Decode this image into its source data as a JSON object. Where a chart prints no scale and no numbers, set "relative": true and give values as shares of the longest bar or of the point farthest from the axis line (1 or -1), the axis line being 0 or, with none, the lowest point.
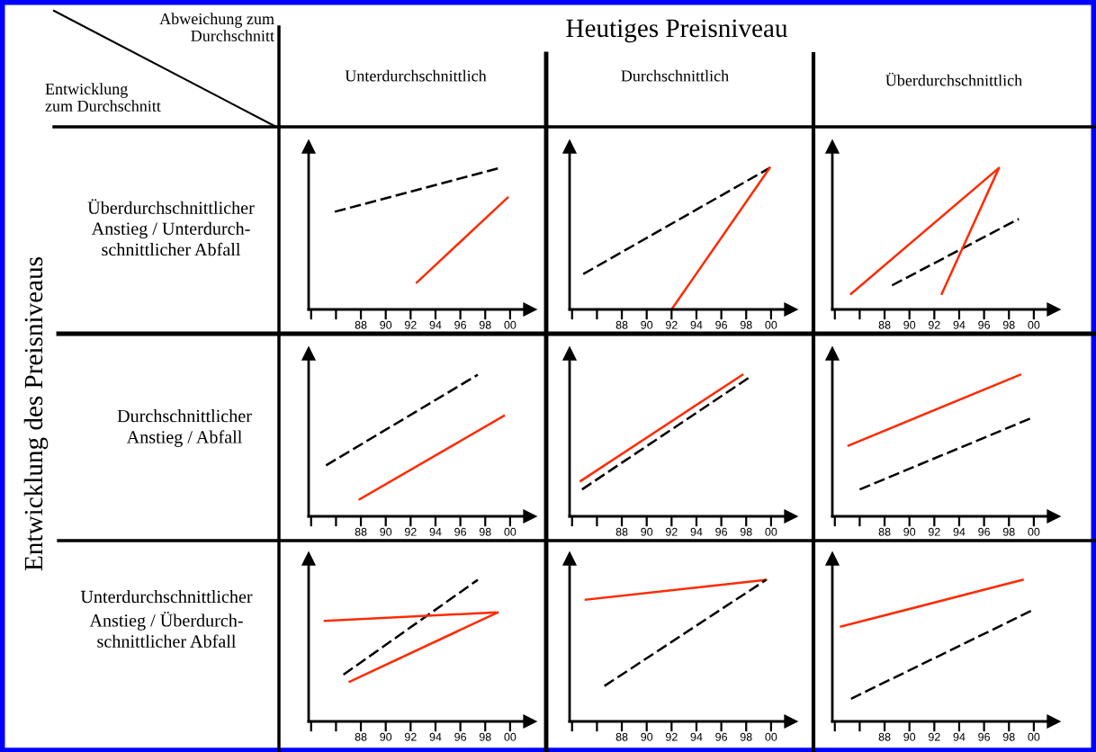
{
  "chart_data": [
    {
      "type": "other",
      "annotations": [
        "Abweichung zum\nDurchschnitt",
        "Entwicklung\nzum Durchschnitt",
        "Heutiges Preisniveau",
        "Unterdurchschnittlich",
        "Durchschnittlich",
        "Überdurchschnittlich",
        "Entwicklung des Preisniveaus",
        "Überdurchschnittlicher\nAnstieg / Unterdurch-\nschnittlicher Abfall",
        "Durchschnittlicher\nAnstieg / Abfall",
        "Unterdurchschnittlicher\nAnstieg / Überdurch-\nschnittlicher Abfall"
      ]
    },
    {
      "type": "line",
      "relative": true,
      "tick_labels": "x",
      "xlim": [
        1983.8,
        2001.6
      ],
      "xticks": [
        {
          "value": 1984,
          "label": null
        },
        {
          "value": 1986,
          "label": null
        },
        {
          "value": 1988,
          "label": "88"
        },
        {
          "value": 1990,
          "label": "90"
        },
        {
          "value": 1992,
          "label": "92"
        },
        {
          "value": 1994,
          "label": "94"
        },
        {
          "value": 1996,
          "label": "96"
        },
        {
          "value": 1998,
          "label": "98"
        },
        {
          "value": 2000,
          "label": "00"
        }
      ],
      "series": [
        {
          "color": "#000000",
          "line_style": "dashed",
          "x": [
            1985.9,
            1999.2
          ],
          "values": [
            0.69,
            1.0
          ]
        },
        {
          "color": "#ff2a00",
          "line_style": "solid",
          "x": [
            1992.5,
            1999.8
          ],
          "values": [
            0.19,
            0.79
          ]
        }
      ]
    },
    {
      "type": "line",
      "relative": true,
      "tick_labels": "x",
      "xlim": [
        1983.8,
        2001.6
      ],
      "xticks": [
        {
          "value": 1984,
          "label": null
        },
        {
          "value": 1986,
          "label": null
        },
        {
          "value": 1988,
          "label": "88"
        },
        {
          "value": 1990,
          "label": "90"
        },
        {
          "value": 1992,
          "label": "92"
        },
        {
          "value": 1994,
          "label": "94"
        },
        {
          "value": 1996,
          "label": "96"
        },
        {
          "value": 1998,
          "label": "98"
        },
        {
          "value": 2000,
          "label": "00"
        }
      ],
      "series": [
        {
          "color": "#000000",
          "line_style": "dashed",
          "x": [
            1984.9,
            1999.9
          ],
          "values": [
            0.25,
            1.0
          ]
        },
        {
          "color": "#ff2a00",
          "line_style": "solid",
          "x": [
            1992.0,
            1999.9
          ],
          "values": [
            0.0,
            1.0
          ]
        }
      ]
    },
    {
      "type": "line",
      "relative": true,
      "tick_labels": "x",
      "xlim": [
        1983.8,
        2001.6
      ],
      "xticks": [
        {
          "value": 1984,
          "label": null
        },
        {
          "value": 1986,
          "label": null
        },
        {
          "value": 1988,
          "label": "88"
        },
        {
          "value": 1990,
          "label": "90"
        },
        {
          "value": 1992,
          "label": "92"
        },
        {
          "value": 1994,
          "label": "94"
        },
        {
          "value": 1996,
          "label": "96"
        },
        {
          "value": 1998,
          "label": "98"
        },
        {
          "value": 2000,
          "label": "00"
        }
      ],
      "series": [
        {
          "color": "#000000",
          "line_style": "dashed",
          "x": [
            1988.6,
            1998.8
          ],
          "values": [
            0.17,
            0.64
          ]
        },
        {
          "color": "#ff2a00",
          "line_style": "solid",
          "x": [
            1985.3,
            1997.2,
            1992.6
          ],
          "values": [
            0.11,
            1.0,
            0.11
          ]
        }
      ]
    },
    {
      "type": "line",
      "relative": true,
      "tick_labels": "x",
      "xlim": [
        1983.8,
        2001.6
      ],
      "xticks": [
        {
          "value": 1984,
          "label": null
        },
        {
          "value": 1986,
          "label": null
        },
        {
          "value": 1988,
          "label": "88"
        },
        {
          "value": 1990,
          "label": "90"
        },
        {
          "value": 1992,
          "label": "92"
        },
        {
          "value": 1994,
          "label": "94"
        },
        {
          "value": 1996,
          "label": "96"
        },
        {
          "value": 1998,
          "label": "98"
        },
        {
          "value": 2000,
          "label": "00"
        }
      ],
      "series": [
        {
          "color": "#000000",
          "line_style": "dashed",
          "x": [
            1985.2,
            1997.4
          ],
          "values": [
            0.36,
            1.0
          ]
        },
        {
          "color": "#ff2a00",
          "line_style": "solid",
          "x": [
            1987.9,
            1999.5
          ],
          "values": [
            0.12,
            0.71
          ]
        }
      ]
    },
    {
      "type": "line",
      "relative": true,
      "tick_labels": "x",
      "xlim": [
        1983.8,
        2001.6
      ],
      "xticks": [
        {
          "value": 1984,
          "label": null
        },
        {
          "value": 1986,
          "label": null
        },
        {
          "value": 1988,
          "label": "88"
        },
        {
          "value": 1990,
          "label": "90"
        },
        {
          "value": 1992,
          "label": "92"
        },
        {
          "value": 1994,
          "label": "94"
        },
        {
          "value": 1996,
          "label": "96"
        },
        {
          "value": 1998,
          "label": "98"
        },
        {
          "value": 2000,
          "label": "00"
        }
      ],
      "series": [
        {
          "color": "#000000",
          "line_style": "dashed",
          "x": [
            1984.8,
            1998.4
          ],
          "values": [
            0.19,
            0.99
          ]
        },
        {
          "color": "#ff2a00",
          "line_style": "solid",
          "x": [
            1984.7,
            1997.7
          ],
          "values": [
            0.25,
            1.0
          ]
        }
      ]
    },
    {
      "type": "line",
      "relative": true,
      "tick_labels": "x",
      "xlim": [
        1983.8,
        2001.6
      ],
      "xticks": [
        {
          "value": 1984,
          "label": null
        },
        {
          "value": 1986,
          "label": null
        },
        {
          "value": 1988,
          "label": "88"
        },
        {
          "value": 1990,
          "label": "90"
        },
        {
          "value": 1992,
          "label": "92"
        },
        {
          "value": 1994,
          "label": "94"
        },
        {
          "value": 1996,
          "label": "96"
        },
        {
          "value": 1998,
          "label": "98"
        },
        {
          "value": 2000,
          "label": "00"
        }
      ],
      "series": [
        {
          "color": "#000000",
          "line_style": "dashed",
          "x": [
            1986.0,
            1999.7
          ],
          "values": [
            0.19,
            0.69
          ]
        },
        {
          "color": "#ff2a00",
          "line_style": "solid",
          "x": [
            1985.1,
            1998.9
          ],
          "values": [
            0.5,
            1.0
          ]
        }
      ]
    },
    {
      "type": "line",
      "relative": true,
      "tick_labels": "x",
      "xlim": [
        1983.8,
        2001.6
      ],
      "xticks": [
        {
          "value": 1984,
          "label": null
        },
        {
          "value": 1986,
          "label": null
        },
        {
          "value": 1988,
          "label": "88"
        },
        {
          "value": 1990,
          "label": "90"
        },
        {
          "value": 1992,
          "label": "92"
        },
        {
          "value": 1994,
          "label": "94"
        },
        {
          "value": 1996,
          "label": "96"
        },
        {
          "value": 1998,
          "label": "98"
        },
        {
          "value": 2000,
          "label": "00"
        }
      ],
      "series": [
        {
          "color": "#000000",
          "line_style": "dashed",
          "x": [
            1986.6,
            1997.4
          ],
          "values": [
            0.33,
            1.0
          ]
        },
        {
          "color": "#ff2a00",
          "line_style": "solid",
          "x": [
            1985.1,
            1998.8
          ],
          "values": [
            0.71,
            0.77
          ]
        },
        {
          "color": "#ff2a00",
          "line_style": "solid",
          "x": [
            1987.1,
            1999.0
          ],
          "values": [
            0.28,
            0.77
          ]
        }
      ]
    },
    {
      "type": "line",
      "relative": true,
      "tick_labels": "x",
      "xlim": [
        1983.8,
        2001.6
      ],
      "xticks": [
        {
          "value": 1984,
          "label": null
        },
        {
          "value": 1986,
          "label": null
        },
        {
          "value": 1988,
          "label": "88"
        },
        {
          "value": 1990,
          "label": "90"
        },
        {
          "value": 1992,
          "label": "92"
        },
        {
          "value": 1994,
          "label": "94"
        },
        {
          "value": 1996,
          "label": "96"
        },
        {
          "value": 1998,
          "label": "98"
        },
        {
          "value": 2000,
          "label": "00"
        }
      ],
      "series": [
        {
          "color": "#ff2a00",
          "line_style": "solid",
          "x": [
            1985.1,
            1999.6
          ],
          "values": [
            0.86,
            1.0
          ]
        },
        {
          "color": "#000000",
          "line_style": "dashed",
          "x": [
            1986.6,
            1999.6
          ],
          "values": [
            0.25,
            1.0
          ]
        }
      ]
    },
    {
      "type": "line",
      "relative": true,
      "tick_labels": "x",
      "xlim": [
        1983.8,
        2001.6
      ],
      "xticks": [
        {
          "value": 1984,
          "label": null
        },
        {
          "value": 1986,
          "label": null
        },
        {
          "value": 1988,
          "label": "88"
        },
        {
          "value": 1990,
          "label": "90"
        },
        {
          "value": 1992,
          "label": "92"
        },
        {
          "value": 1994,
          "label": "94"
        },
        {
          "value": 1996,
          "label": "96"
        },
        {
          "value": 1998,
          "label": "98"
        },
        {
          "value": 2000,
          "label": "00"
        }
      ],
      "series": [
        {
          "color": "#ff2a00",
          "line_style": "solid",
          "x": [
            1984.5,
            1999.1
          ],
          "values": [
            0.67,
            1.0
          ]
        },
        {
          "color": "#000000",
          "line_style": "dashed",
          "x": [
            1985.3,
            2000.0
          ],
          "values": [
            0.16,
            0.79
          ]
        }
      ]
    }
  ]
}
